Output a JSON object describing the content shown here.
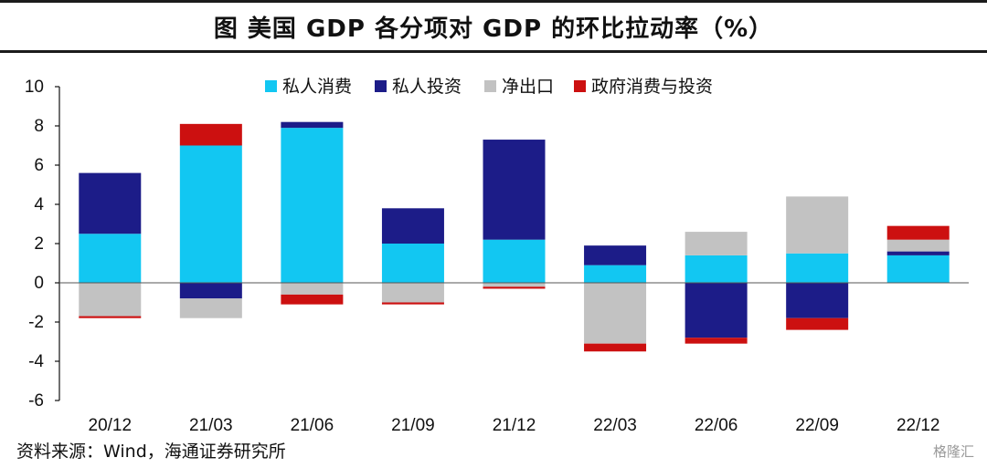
{
  "title": "图  美国 GDP 各分项对 GDP 的环比拉动率（%）",
  "source": "资料来源：Wind，海通证券研究所",
  "watermark": "格隆汇",
  "chart_data": {
    "type": "bar",
    "stacked": true,
    "categories": [
      "20/12",
      "21/03",
      "21/06",
      "21/09",
      "21/12",
      "22/03",
      "22/06",
      "22/09",
      "22/12"
    ],
    "ylim": [
      -6,
      10
    ],
    "yticks": [
      10,
      8,
      6,
      4,
      2,
      0,
      -2,
      -4,
      -6
    ],
    "legend_position": "top-center",
    "series": [
      {
        "name": "私人消费",
        "color": "#12c7f2",
        "values": [
          2.5,
          7.0,
          7.9,
          2.0,
          2.2,
          0.9,
          1.4,
          1.5,
          1.4
        ]
      },
      {
        "name": "私人投资",
        "color": "#1c1c88",
        "values": [
          3.1,
          -0.8,
          0.3,
          1.8,
          5.1,
          1.0,
          -2.8,
          -1.8,
          0.2
        ]
      },
      {
        "name": "净出口",
        "color": "#c2c2c2",
        "values": [
          -1.7,
          -1.0,
          -0.6,
          -1.0,
          -0.2,
          -3.1,
          1.2,
          2.9,
          0.6
        ]
      },
      {
        "name": "政府消费与投资",
        "color": "#cc1010",
        "values": [
          -0.1,
          1.1,
          -0.5,
          -0.1,
          -0.1,
          -0.4,
          -0.3,
          -0.6,
          0.7
        ]
      }
    ]
  }
}
